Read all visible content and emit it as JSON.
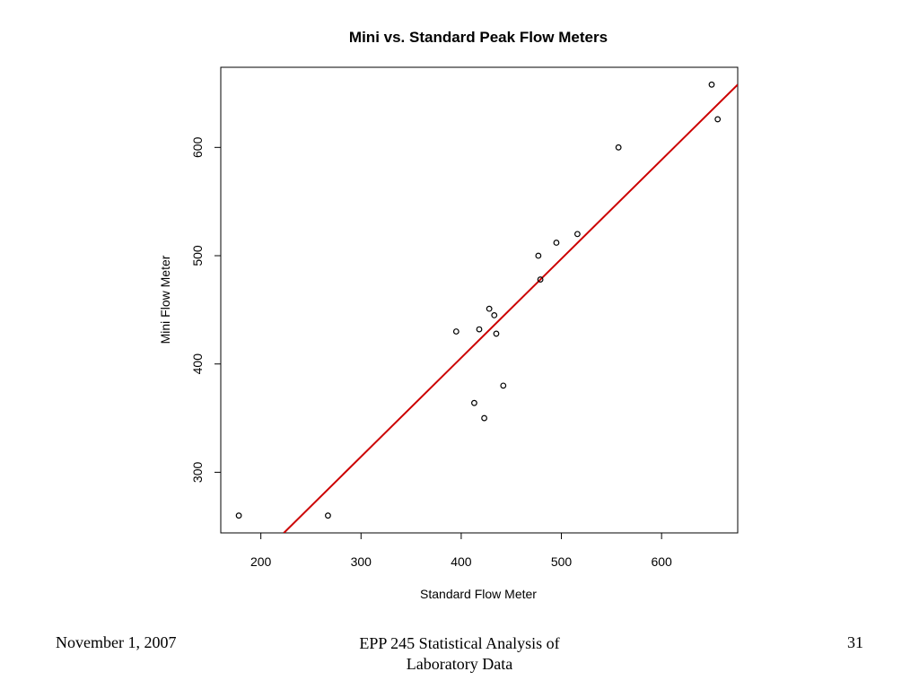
{
  "chart_data": {
    "type": "scatter",
    "title": "Mini vs. Standard Peak Flow Meters",
    "xlabel": "Standard Flow Meter",
    "ylabel": "Mini Flow Meter",
    "xlim": [
      160,
      676
    ],
    "ylim": [
      244,
      674
    ],
    "xticks": [
      200,
      300,
      400,
      500,
      600
    ],
    "yticks": [
      300,
      400,
      500,
      600
    ],
    "grid": false,
    "legend": "none",
    "points": [
      {
        "x": 178,
        "y": 260
      },
      {
        "x": 267,
        "y": 260
      },
      {
        "x": 395,
        "y": 430
      },
      {
        "x": 413,
        "y": 364
      },
      {
        "x": 418,
        "y": 432
      },
      {
        "x": 423,
        "y": 350
      },
      {
        "x": 428,
        "y": 451
      },
      {
        "x": 433,
        "y": 445
      },
      {
        "x": 435,
        "y": 428
      },
      {
        "x": 442,
        "y": 380
      },
      {
        "x": 477,
        "y": 500
      },
      {
        "x": 479,
        "y": 478
      },
      {
        "x": 495,
        "y": 512
      },
      {
        "x": 516,
        "y": 520
      },
      {
        "x": 557,
        "y": 600
      },
      {
        "x": 650,
        "y": 658
      },
      {
        "x": 656,
        "y": 626
      }
    ],
    "fit_line": {
      "x": [
        223,
        676
      ],
      "y": [
        244,
        658
      ]
    },
    "colors": {
      "points": "#000000",
      "fit_line": "#cc0000",
      "axes": "#000000"
    }
  },
  "footer": {
    "date": "November 1, 2007",
    "course_line1": "EPP 245 Statistical Analysis of",
    "course_line2": "Laboratory Data",
    "page_number": "31"
  }
}
